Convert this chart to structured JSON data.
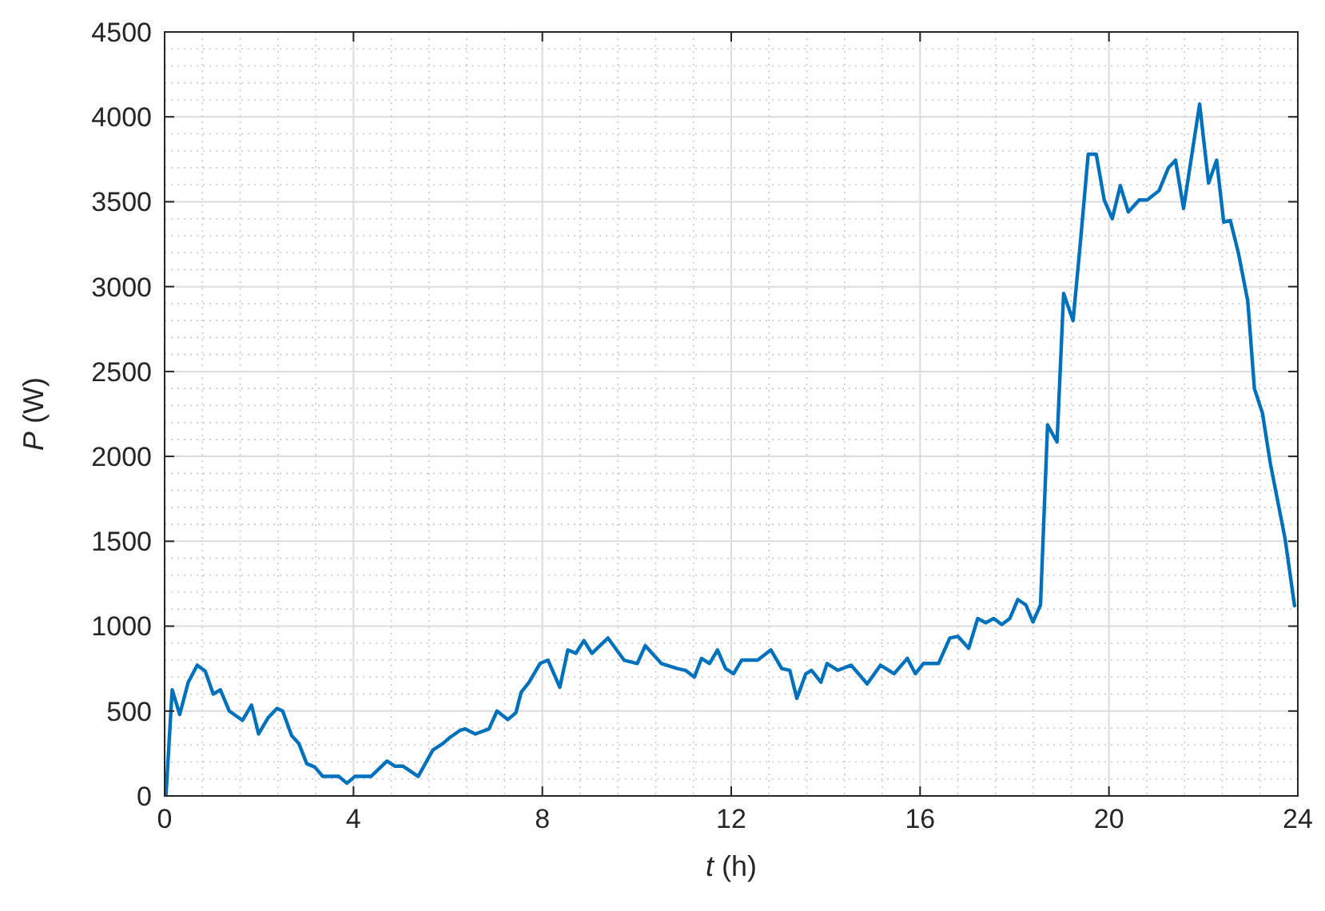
{
  "chart_data": {
    "type": "line",
    "xlabel": "t (h)",
    "ylabel": "P (W)",
    "xlim": [
      0,
      24
    ],
    "xticks": [
      0,
      4,
      8,
      12,
      16,
      20,
      24
    ],
    "ylim": [
      0,
      4500
    ],
    "yticks": [
      0,
      500,
      1000,
      1500,
      2000,
      2500,
      3000,
      3500,
      4000,
      4500
    ],
    "grid": true,
    "series": [
      {
        "color": "#0072bd",
        "x": [
          0.03,
          0.16,
          0.32,
          0.5,
          0.69,
          0.86,
          1.03,
          1.18,
          1.37,
          1.65,
          1.84,
          1.99,
          2.19,
          2.38,
          2.5,
          2.69,
          2.84,
          3.01,
          3.18,
          3.35,
          3.69,
          3.86,
          4.03,
          4.37,
          4.71,
          4.88,
          5.05,
          5.37,
          5.68,
          5.9,
          6.02,
          6.25,
          6.36,
          6.58,
          6.87,
          7.04,
          7.27,
          7.44,
          7.55,
          7.72,
          7.95,
          8.12,
          8.37,
          8.54,
          8.71,
          8.88,
          9.05,
          9.39,
          9.73,
          10.01,
          10.18,
          10.52,
          10.86,
          11.03,
          11.22,
          11.37,
          11.54,
          11.71,
          11.88,
          12.05,
          12.22,
          12.56,
          12.84,
          13.07,
          13.24,
          13.39,
          13.58,
          13.7,
          13.9,
          14.03,
          14.26,
          14.54,
          14.88,
          15.16,
          15.45,
          15.73,
          15.9,
          16.07,
          16.39,
          16.63,
          16.8,
          17.03,
          17.22,
          17.39,
          17.56,
          17.73,
          17.9,
          18.07,
          18.24,
          18.39,
          18.55,
          18.7,
          18.9,
          19.04,
          19.24,
          19.39,
          19.56,
          19.73,
          19.9,
          20.07,
          20.24,
          20.41,
          20.64,
          20.81,
          21.06,
          21.26,
          21.41,
          21.58,
          21.92,
          22.11,
          22.28,
          22.43,
          22.57,
          22.74,
          22.94,
          23.08,
          23.25,
          23.42,
          23.73,
          23.93
        ],
        "values": [
          10,
          625,
          480,
          670,
          770,
          735,
          600,
          625,
          500,
          445,
          535,
          365,
          460,
          515,
          500,
          355,
          310,
          190,
          170,
          115,
          115,
          75,
          115,
          115,
          205,
          175,
          175,
          115,
          270,
          310,
          340,
          385,
          395,
          365,
          395,
          500,
          450,
          490,
          610,
          670,
          780,
          800,
          640,
          860,
          840,
          915,
          840,
          930,
          800,
          780,
          885,
          780,
          750,
          740,
          700,
          810,
          780,
          860,
          750,
          720,
          800,
          800,
          860,
          750,
          740,
          575,
          720,
          740,
          670,
          780,
          740,
          770,
          660,
          770,
          720,
          810,
          720,
          780,
          780,
          930,
          940,
          870,
          1045,
          1020,
          1045,
          1010,
          1045,
          1157,
          1125,
          1025,
          1125,
          2185,
          2085,
          2960,
          2800,
          3245,
          3780,
          3780,
          3510,
          3400,
          3595,
          3440,
          3510,
          3510,
          3565,
          3700,
          3745,
          3460,
          4075,
          3610,
          3745,
          3380,
          3390,
          3200,
          2915,
          2400,
          2255,
          1955,
          1515,
          1120
        ]
      }
    ]
  }
}
